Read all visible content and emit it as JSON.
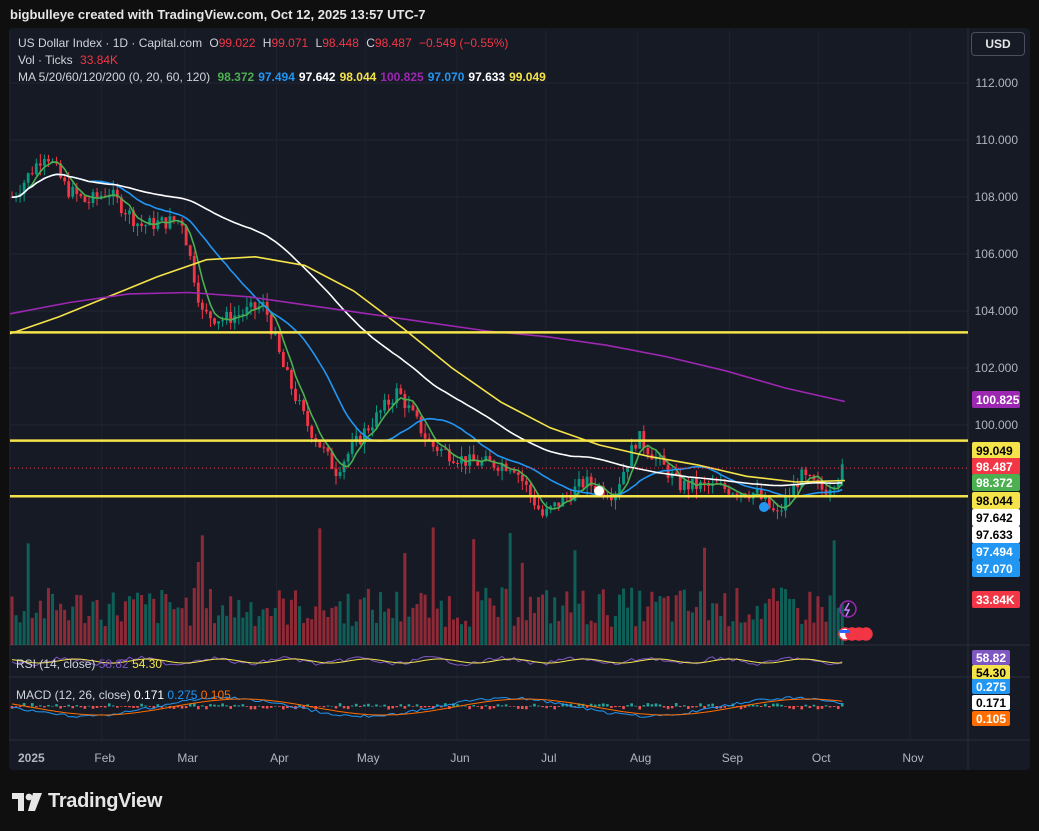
{
  "credit": "bigbulleye created with TradingView.com, Oct 12, 2025 13:57 UTC-7",
  "brand": "TradingView",
  "currency_button": "USD",
  "legend": {
    "symbol": "US Dollar Index · 1D · Capital.com",
    "o_label": "O",
    "o": "99.022",
    "h_label": "H",
    "h": "99.071",
    "l_label": "L",
    "l": "98.448",
    "c_label": "C",
    "c": "98.487",
    "change": "−0.549 (−0.55%)",
    "vol_label": "Vol · Ticks",
    "vol": "33.84K",
    "ma_label": "MA 5/20/60/120/200 (0, 20, 60, 120)",
    "ma_values": [
      {
        "v": "98.372",
        "color": "#4caf50"
      },
      {
        "v": "97.494",
        "color": "#2196f3"
      },
      {
        "v": "97.642",
        "color": "#ffffff"
      },
      {
        "v": "98.044",
        "color": "#f5e34a"
      },
      {
        "v": "100.825",
        "color": "#9c27b0"
      },
      {
        "v": "97.070",
        "color": "#2196f3"
      },
      {
        "v": "97.633",
        "color": "#ffffff"
      },
      {
        "v": "99.049",
        "color": "#f5e34a"
      }
    ]
  },
  "rsi_legend": {
    "label": "RSI (14, close)",
    "v1": "58.82",
    "v2": "54.30"
  },
  "macd_legend": {
    "label": "MACD (12, 26, close)",
    "v1": "0.171",
    "v2": "0.275",
    "v3": "0.105"
  },
  "price_badges": [
    {
      "text": "100.825",
      "bg": "#9c27b0",
      "fg": "#ffffff",
      "value": 100.825
    },
    {
      "text": "99.049",
      "bg": "#f5e34a",
      "fg": "#000000",
      "value": 99.049
    },
    {
      "text": "98.487",
      "bg": "#f23645",
      "fg": "#ffffff",
      "value": 98.487
    },
    {
      "text": "98.372",
      "bg": "#4caf50",
      "fg": "#ffffff",
      "value": 98.372
    },
    {
      "text": "98.044",
      "bg": "#f5e34a",
      "fg": "#000000",
      "value": 98.044
    },
    {
      "text": "97.642",
      "bg": "#ffffff",
      "fg": "#000000",
      "value": 97.642
    },
    {
      "text": "97.633",
      "bg": "#ffffff",
      "fg": "#000000",
      "value": 97.633
    },
    {
      "text": "97.494",
      "bg": "#2196f3",
      "fg": "#ffffff",
      "value": 97.494
    },
    {
      "text": "97.070",
      "bg": "#2196f3",
      "fg": "#ffffff",
      "value": 97.07
    },
    {
      "text": "33.84K",
      "bg": "#f23645",
      "fg": "#ffffff",
      "value": null
    }
  ],
  "sub_badges": [
    {
      "text": "58.82",
      "bg": "#7e57c2",
      "fg": "#ffffff",
      "pane": "rsi"
    },
    {
      "text": "54.30",
      "bg": "#f5e34a",
      "fg": "#000000",
      "pane": "rsi"
    },
    {
      "text": "0.275",
      "bg": "#2196f3",
      "fg": "#ffffff",
      "pane": "macd"
    },
    {
      "text": "0.171",
      "bg": "#ffffff",
      "fg": "#000000",
      "pane": "macd"
    },
    {
      "text": "0.105",
      "bg": "#ff6d00",
      "fg": "#ffffff",
      "pane": "macd"
    }
  ],
  "chart_data": {
    "type": "candlestick",
    "title": "US Dollar Index · 1D · Capital.com",
    "x_tick_labels": [
      "2025",
      "Feb",
      "Mar",
      "Apr",
      "May",
      "Jun",
      "Jul",
      "Aug",
      "Sep",
      "Oct",
      "Nov"
    ],
    "y_tick_labels": [
      "112.000",
      "110.000",
      "108.000",
      "106.000",
      "104.000",
      "102.000",
      "100.000"
    ],
    "ylim": [
      96.0,
      113.0
    ],
    "horizontal_levels": [
      103.25,
      99.45,
      97.5
    ],
    "close_approx": [
      {
        "date": "2025-01-02",
        "close": 108.0
      },
      {
        "date": "2025-01-13",
        "close": 109.6
      },
      {
        "date": "2025-01-20",
        "close": 108.3
      },
      {
        "date": "2025-01-27",
        "close": 107.8
      },
      {
        "date": "2025-02-03",
        "close": 108.2
      },
      {
        "date": "2025-02-14",
        "close": 107.0
      },
      {
        "date": "2025-02-28",
        "close": 107.2
      },
      {
        "date": "2025-03-03",
        "close": 105.8
      },
      {
        "date": "2025-03-07",
        "close": 103.9
      },
      {
        "date": "2025-03-14",
        "close": 103.7
      },
      {
        "date": "2025-03-28",
        "close": 104.2
      },
      {
        "date": "2025-04-03",
        "close": 102.1
      },
      {
        "date": "2025-04-11",
        "close": 100.1
      },
      {
        "date": "2025-04-21",
        "close": 98.4
      },
      {
        "date": "2025-05-01",
        "close": 99.8
      },
      {
        "date": "2025-05-12",
        "close": 101.2
      },
      {
        "date": "2025-05-23",
        "close": 99.3
      },
      {
        "date": "2025-06-05",
        "close": 98.7
      },
      {
        "date": "2025-06-20",
        "close": 98.6
      },
      {
        "date": "2025-06-30",
        "close": 96.8
      },
      {
        "date": "2025-07-14",
        "close": 98.0
      },
      {
        "date": "2025-07-24",
        "close": 97.6
      },
      {
        "date": "2025-08-01",
        "close": 99.6
      },
      {
        "date": "2025-08-15",
        "close": 97.9
      },
      {
        "date": "2025-08-29",
        "close": 97.8
      },
      {
        "date": "2025-09-10",
        "close": 97.6
      },
      {
        "date": "2025-09-17",
        "close": 96.8
      },
      {
        "date": "2025-09-25",
        "close": 98.2
      },
      {
        "date": "2025-10-03",
        "close": 97.7
      },
      {
        "date": "2025-10-10",
        "close": 98.5
      }
    ],
    "series": [
      {
        "name": "MA 5",
        "color": "#4caf50",
        "last": 98.372
      },
      {
        "name": "MA 20",
        "color": "#2196f3",
        "last": 97.494
      },
      {
        "name": "MA 60",
        "color": "#ffffff",
        "last": 97.642
      },
      {
        "name": "MA 120",
        "color": "#f5e34a",
        "last": 98.044
      },
      {
        "name": "MA 200",
        "color": "#9c27b0",
        "last": 100.825
      }
    ],
    "volume_last": "33.84K",
    "rsi": {
      "rsi": 58.82,
      "ma": 54.3
    },
    "macd": {
      "macd": 0.171,
      "signal": 0.275,
      "hist": 0.105
    }
  }
}
